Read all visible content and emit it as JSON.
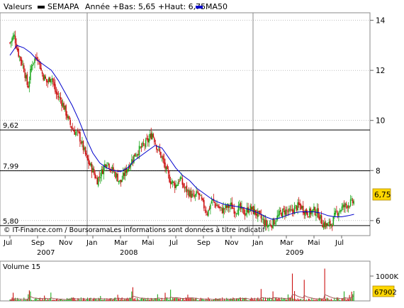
{
  "header": {
    "label": "Valeurs",
    "ticker": "SEMAPA",
    "range_text": "Année +Bas: 5,65 +Haut: 6,75",
    "ma_label": "MA50"
  },
  "credit": "© IT-Finance.com / BoursoramaLes informations sont données à titre indicatif",
  "volume_panel": {
    "title": "Volume 15",
    "max_label": "1000K",
    "last_label": "67902"
  },
  "colors": {
    "up": "#22aa22",
    "down": "#cc1111",
    "ma": "#0000cc",
    "volume_ma": "#a05050",
    "grid": "#999999",
    "separator": "#888888",
    "last_badge": "#ffd700"
  },
  "chart_data": {
    "type": "candlestick",
    "title": "SEMAPA",
    "y_range": [
      5.4,
      14.3
    ],
    "y_ticks": [
      "14",
      "12",
      "10",
      "8",
      "6"
    ],
    "reference_lines": [
      {
        "label": "9,62",
        "value": 9.62
      },
      {
        "label": "7,99",
        "value": 7.99
      },
      {
        "label": "5,80",
        "value": 5.8
      }
    ],
    "last_value_label": "6,75",
    "x_labels": [
      {
        "label": "Jul",
        "year": "2007",
        "t": 0
      },
      {
        "label": "Sep",
        "t": 2
      },
      {
        "label": "Nov",
        "t": 4
      },
      {
        "label": "Jan",
        "year": "2008",
        "t": 6
      },
      {
        "label": "Mar",
        "t": 8
      },
      {
        "label": "Mai",
        "t": 10
      },
      {
        "label": "Jul",
        "t": 12
      },
      {
        "label": "Sep",
        "t": 14
      },
      {
        "label": "Nov",
        "t": 16
      },
      {
        "label": "Jan",
        "year": "2009",
        "t": 18
      },
      {
        "label": "Mar",
        "t": 20
      },
      {
        "label": "Mai",
        "t": 22
      },
      {
        "label": "Jul",
        "t": 24
      }
    ],
    "close_path": [
      [
        0,
        13.1
      ],
      [
        0.3,
        13.4
      ],
      [
        0.6,
        12.7
      ],
      [
        1.0,
        12.1
      ],
      [
        1.3,
        11.3
      ],
      [
        1.6,
        12.3
      ],
      [
        2.0,
        12.6
      ],
      [
        2.3,
        11.9
      ],
      [
        2.7,
        11.5
      ],
      [
        3.0,
        11.8
      ],
      [
        3.3,
        11.1
      ],
      [
        3.7,
        10.8
      ],
      [
        4.0,
        10.4
      ],
      [
        4.3,
        9.9
      ],
      [
        4.6,
        9.6
      ],
      [
        5.0,
        9.4
      ],
      [
        5.3,
        8.9
      ],
      [
        5.6,
        8.4
      ],
      [
        6.0,
        8.0
      ],
      [
        6.3,
        7.6
      ],
      [
        6.6,
        7.9
      ],
      [
        7.0,
        8.4
      ],
      [
        7.3,
        8.1
      ],
      [
        7.7,
        7.8
      ],
      [
        8.0,
        7.5
      ],
      [
        8.3,
        7.9
      ],
      [
        8.7,
        8.3
      ],
      [
        9.0,
        8.6
      ],
      [
        9.3,
        8.8
      ],
      [
        9.7,
        9.0
      ],
      [
        10.0,
        9.2
      ],
      [
        10.3,
        9.5
      ],
      [
        10.6,
        9.0
      ],
      [
        11.0,
        8.5
      ],
      [
        11.3,
        8.0
      ],
      [
        11.6,
        7.6
      ],
      [
        12.0,
        7.4
      ],
      [
        12.3,
        7.7
      ],
      [
        12.6,
        7.3
      ],
      [
        13.0,
        7.1
      ],
      [
        13.3,
        6.9
      ],
      [
        13.6,
        7.1
      ],
      [
        14.0,
        6.6
      ],
      [
        14.3,
        6.3
      ],
      [
        14.6,
        6.8
      ],
      [
        15.0,
        6.6
      ],
      [
        15.3,
        6.4
      ],
      [
        15.6,
        6.5
      ],
      [
        16.0,
        6.6
      ],
      [
        16.3,
        6.4
      ],
      [
        16.6,
        6.5
      ],
      [
        17.0,
        6.3
      ],
      [
        17.3,
        6.5
      ],
      [
        17.6,
        6.4
      ],
      [
        18.0,
        6.2
      ],
      [
        18.3,
        6.0
      ],
      [
        18.6,
        5.8
      ],
      [
        19.0,
        5.9
      ],
      [
        19.3,
        6.1
      ],
      [
        19.6,
        6.3
      ],
      [
        20.0,
        6.4
      ],
      [
        20.3,
        6.3
      ],
      [
        20.6,
        6.5
      ],
      [
        21.0,
        6.6
      ],
      [
        21.3,
        6.4
      ],
      [
        21.6,
        6.3
      ],
      [
        22.0,
        6.4
      ],
      [
        22.3,
        6.3
      ],
      [
        22.6,
        5.9
      ],
      [
        23.0,
        5.8
      ],
      [
        23.3,
        5.9
      ],
      [
        23.6,
        6.3
      ],
      [
        24.0,
        6.5
      ],
      [
        24.3,
        6.6
      ],
      [
        24.6,
        6.7
      ],
      [
        24.9,
        6.75
      ]
    ],
    "ma50_path": [
      [
        0,
        12.6
      ],
      [
        0.5,
        13.0
      ],
      [
        1.0,
        12.9
      ],
      [
        1.5,
        12.7
      ],
      [
        2.0,
        12.4
      ],
      [
        2.5,
        12.2
      ],
      [
        3.0,
        12.0
      ],
      [
        3.5,
        11.6
      ],
      [
        4.0,
        11.1
      ],
      [
        4.5,
        10.6
      ],
      [
        5.0,
        10.0
      ],
      [
        5.5,
        9.3
      ],
      [
        6.0,
        8.7
      ],
      [
        6.5,
        8.3
      ],
      [
        7.0,
        8.1
      ],
      [
        7.5,
        8.0
      ],
      [
        8.0,
        7.95
      ],
      [
        8.5,
        8.1
      ],
      [
        9.0,
        8.4
      ],
      [
        9.5,
        8.6
      ],
      [
        10.0,
        8.8
      ],
      [
        10.5,
        9.0
      ],
      [
        11.0,
        8.9
      ],
      [
        11.5,
        8.5
      ],
      [
        12.0,
        8.1
      ],
      [
        12.5,
        7.8
      ],
      [
        13.0,
        7.6
      ],
      [
        13.5,
        7.3
      ],
      [
        14.0,
        7.1
      ],
      [
        14.5,
        6.9
      ],
      [
        15.0,
        6.75
      ],
      [
        15.5,
        6.65
      ],
      [
        16.0,
        6.6
      ],
      [
        16.5,
        6.55
      ],
      [
        17.0,
        6.5
      ],
      [
        17.5,
        6.4
      ],
      [
        18.0,
        6.3
      ],
      [
        18.5,
        6.15
      ],
      [
        19.0,
        6.05
      ],
      [
        19.5,
        6.1
      ],
      [
        20.0,
        6.2
      ],
      [
        20.5,
        6.3
      ],
      [
        21.0,
        6.35
      ],
      [
        21.5,
        6.35
      ],
      [
        22.0,
        6.35
      ],
      [
        22.5,
        6.3
      ],
      [
        23.0,
        6.2
      ],
      [
        23.5,
        6.15
      ],
      [
        24.0,
        6.15
      ],
      [
        24.5,
        6.2
      ],
      [
        24.9,
        6.25
      ]
    ],
    "volume": {
      "max_value_k": 1000,
      "spikes": [
        {
          "t": 20.4,
          "value_k": 1100
        },
        {
          "t": 21.3,
          "value_k": 850
        },
        {
          "t": 22.8,
          "value_k": 1300
        },
        {
          "t": 8.9,
          "value_k": 550
        },
        {
          "t": 18.2,
          "value_k": 480
        }
      ]
    }
  }
}
